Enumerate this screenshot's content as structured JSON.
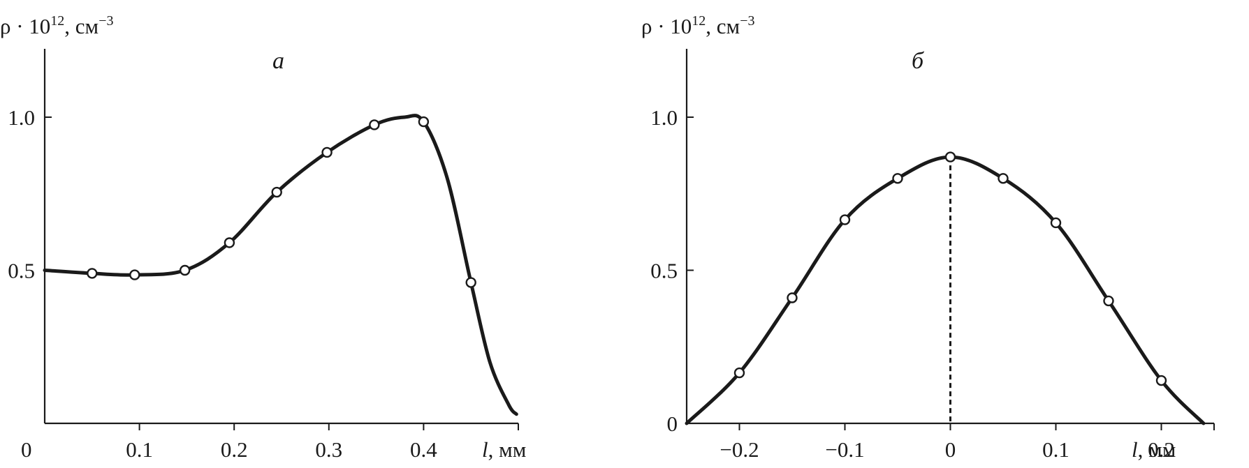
{
  "chart_data": [
    {
      "type": "line",
      "panel_label": "а",
      "ylabel": {
        "base": "ρ · 10",
        "exp": "12",
        "unit": ", см",
        "unit_exp": "−3"
      },
      "xlabel": {
        "var": "l",
        "unit": ", мм"
      },
      "xlim": [
        0,
        0.5
      ],
      "ylim": [
        0,
        1.0
      ],
      "x_ticks": [
        0.1,
        0.2,
        0.3,
        0.4
      ],
      "x_tick_labels": [
        "0.1",
        "0.2",
        "0.3",
        "0.4"
      ],
      "y_ticks": [
        0.5,
        1.0
      ],
      "y_tick_labels": [
        "0.5",
        "1.0"
      ],
      "origin_label": "0",
      "series": [
        {
          "points": {
            "x": [
              0.05,
              0.095,
              0.148,
              0.195,
              0.245,
              0.298,
              0.348,
              0.4,
              0.45
            ],
            "y": [
              0.49,
              0.485,
              0.5,
              0.59,
              0.755,
              0.885,
              0.975,
              0.985,
              0.46
            ]
          },
          "curve": {
            "x": [
              0.0,
              0.05,
              0.095,
              0.148,
              0.195,
              0.245,
              0.298,
              0.348,
              0.38,
              0.4,
              0.425,
              0.45,
              0.47,
              0.49,
              0.498
            ],
            "y": [
              0.5,
              0.49,
              0.485,
              0.5,
              0.59,
              0.755,
              0.885,
              0.975,
              1.0,
              0.985,
              0.8,
              0.46,
              0.2,
              0.06,
              0.03
            ]
          }
        }
      ]
    },
    {
      "type": "line",
      "panel_label": "б",
      "ylabel": {
        "base": "ρ · 10",
        "exp": "12",
        "unit": ", см",
        "unit_exp": "−3"
      },
      "xlabel": {
        "var": "l",
        "unit": ", мм"
      },
      "xlim": [
        -0.25,
        0.25
      ],
      "ylim": [
        0,
        1.0
      ],
      "x_ticks": [
        -0.2,
        -0.1,
        0,
        0.1,
        0.2
      ],
      "x_tick_labels": [
        "−0.2",
        "−0.1",
        "0",
        "0.1",
        "0.2"
      ],
      "y_ticks": [
        0,
        0.5,
        1.0
      ],
      "y_tick_labels": [
        "0",
        "0.5",
        "1.0"
      ],
      "series": [
        {
          "points": {
            "x": [
              -0.2,
              -0.15,
              -0.1,
              -0.05,
              0.0,
              0.05,
              0.1,
              0.15,
              0.2
            ],
            "y": [
              0.165,
              0.41,
              0.665,
              0.8,
              0.87,
              0.8,
              0.655,
              0.4,
              0.14
            ]
          },
          "curve": {
            "x": [
              -0.25,
              -0.2,
              -0.15,
              -0.1,
              -0.05,
              0.0,
              0.05,
              0.1,
              0.15,
              0.2,
              0.24
            ],
            "y": [
              0.0,
              0.165,
              0.41,
              0.665,
              0.8,
              0.87,
              0.8,
              0.655,
              0.4,
              0.14,
              0.0
            ]
          }
        }
      ],
      "vline_x": 0.0
    }
  ]
}
